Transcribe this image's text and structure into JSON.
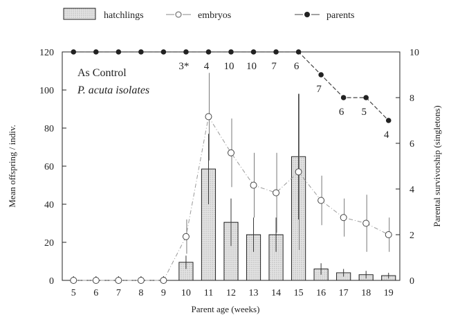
{
  "chart_data": {
    "type": "bar",
    "title": "",
    "xlabel": "Parent age (weeks)",
    "ylabel": "Mean offspring / indiv.",
    "y2label": "Parental survivorship (singletons)",
    "categories": [
      "5",
      "6",
      "7",
      "8",
      "9",
      "10",
      "11",
      "12",
      "13",
      "14",
      "15",
      "16",
      "17",
      "18",
      "19"
    ],
    "ylim": [
      0,
      120
    ],
    "y2lim": [
      0,
      10
    ],
    "yticks": [
      0,
      20,
      40,
      60,
      80,
      100,
      120
    ],
    "y2ticks": [
      0,
      2,
      4,
      6,
      8,
      10
    ],
    "grid": false,
    "legend_position": "top",
    "annotations": [
      "As Control",
      "P. acuta isolates"
    ],
    "series": [
      {
        "name": "hatchlings",
        "kind": "bar",
        "axis": "left",
        "values": [
          0,
          0,
          0,
          0,
          0,
          9.5,
          58.5,
          30.5,
          24,
          24,
          65,
          6,
          4,
          3,
          2.5
        ],
        "error_high": [
          0,
          0,
          0,
          0,
          0,
          13,
          77,
          43,
          33,
          33,
          98,
          9,
          6,
          5,
          4
        ],
        "error_low": [
          0,
          0,
          0,
          0,
          0,
          6,
          40,
          18,
          15,
          15,
          32,
          3,
          2,
          1,
          1
        ]
      },
      {
        "name": "embryos",
        "kind": "line",
        "axis": "left",
        "values": [
          0,
          0,
          0,
          0,
          0,
          23,
          86,
          67,
          50,
          46,
          57,
          42,
          33,
          30,
          24
        ],
        "error_high": [
          0,
          0,
          0,
          0,
          0,
          32,
          109,
          85,
          67,
          67,
          98,
          55,
          43,
          45,
          33
        ],
        "error_low": [
          0,
          0,
          0,
          0,
          0,
          14,
          63,
          49,
          33,
          25,
          16,
          29,
          23,
          15,
          15
        ]
      },
      {
        "name": "parents",
        "kind": "line",
        "axis": "right",
        "values": [
          10,
          10,
          10,
          10,
          10,
          10,
          10,
          10,
          10,
          10,
          10,
          9,
          8,
          8,
          7
        ],
        "labels": [
          "",
          "",
          "",
          "",
          "",
          "3*",
          "4",
          "10",
          "10",
          "7",
          "6",
          "7",
          "6",
          "5",
          "4"
        ]
      }
    ]
  },
  "colors": {
    "bar_fill": "#d8d8d8",
    "axis": "#222222",
    "embryo_line": "#999999",
    "parent_line": "#444444"
  }
}
